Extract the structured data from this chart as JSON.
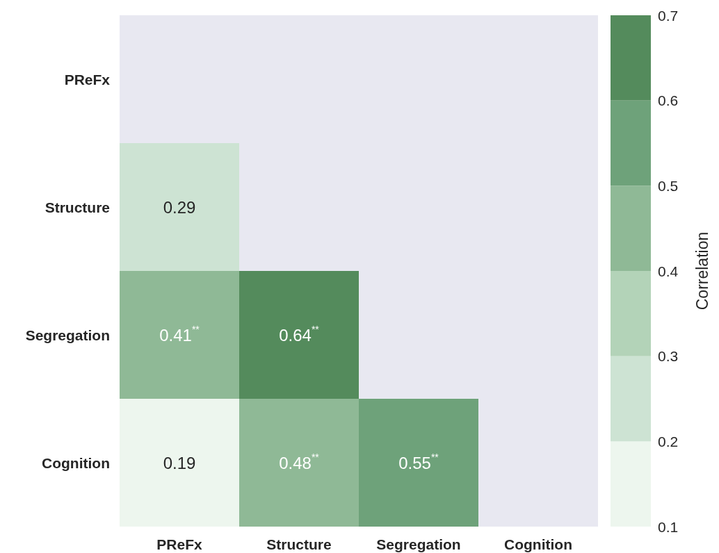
{
  "chart_data": {
    "type": "heatmap",
    "categories": [
      "PReFx",
      "Structure",
      "Segregation",
      "Cognition"
    ],
    "y_categories": [
      "PReFx",
      "Structure",
      "Segregation",
      "Cognition"
    ],
    "cells": [
      [
        null,
        null,
        null,
        null
      ],
      [
        0.29,
        null,
        null,
        null
      ],
      [
        0.41,
        0.64,
        null,
        null
      ],
      [
        0.19,
        0.48,
        0.55,
        null
      ]
    ],
    "cell_labels": [
      [
        null,
        null,
        null,
        null
      ],
      [
        "0.29",
        null,
        null,
        null
      ],
      [
        "0.41$^{**}$",
        "0.64$^{**}$",
        null,
        null
      ],
      [
        "0.19",
        "0.48$^{**}$",
        "0.55$^{**}$",
        null
      ]
    ],
    "clim": [
      0.1,
      0.7
    ],
    "cticks": [
      0.1,
      0.2,
      0.3,
      0.4,
      0.5,
      0.6,
      0.7
    ],
    "colors": [
      "#edf6ee",
      "#cde3d3",
      "#b3d3b8",
      "#8fb996",
      "#6ea27a",
      "#548b5c"
    ],
    "clabel": "Correlation"
  }
}
